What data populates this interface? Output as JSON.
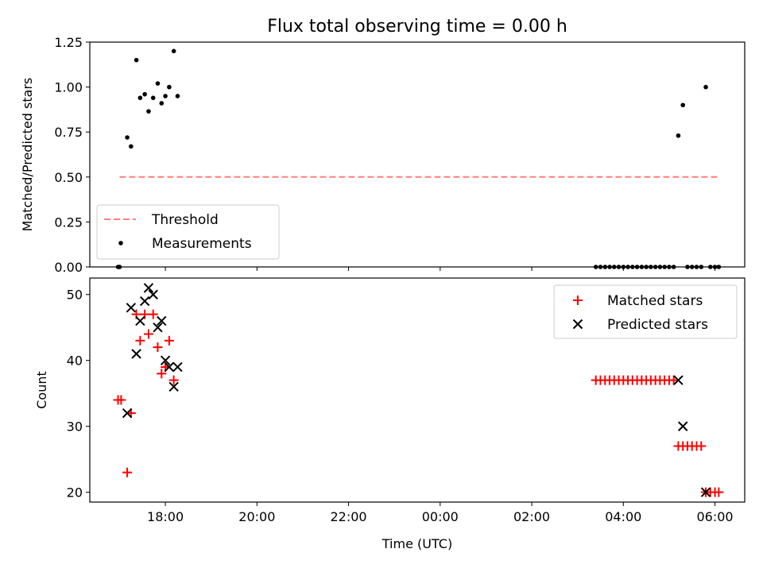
{
  "title": "Flux total observing time = 0.00 h",
  "colors": {
    "threshold": "#ff7f7f",
    "measurement": "#000000",
    "matched": "#ff0000",
    "predicted": "#000000"
  },
  "chart_data": [
    {
      "type": "scatter",
      "title": "Flux total observing time = 0.00 h",
      "xlabel": "",
      "ylabel": "Matched/Predicted stars",
      "ylim": [
        0,
        1.25
      ],
      "yticks": [
        "0.00",
        "0.25",
        "0.50",
        "0.75",
        "1.00",
        "1.25"
      ],
      "xlim_hours": [
        16.35,
        30.65
      ],
      "legend_position": "lower-left",
      "threshold": {
        "name": "Threshold",
        "y": 0.5,
        "x_start": "17:00",
        "x_end": "06:05"
      },
      "series": [
        {
          "name": "Measurements",
          "x": [
            "16:58",
            "17:00",
            "17:10",
            "17:15",
            "17:22",
            "17:27",
            "17:33",
            "17:38",
            "17:44",
            "17:50",
            "17:55",
            "18:00",
            "18:05",
            "18:11",
            "18:16",
            "03:24",
            "03:30",
            "03:36",
            "03:42",
            "03:48",
            "03:54",
            "04:00",
            "04:06",
            "04:12",
            "04:18",
            "04:24",
            "04:30",
            "04:36",
            "04:42",
            "04:48",
            "04:54",
            "05:00",
            "05:06",
            "05:12",
            "05:18",
            "05:24",
            "05:30",
            "05:36",
            "05:42",
            "05:48",
            "05:54",
            "06:00",
            "06:05"
          ],
          "y": [
            0.0,
            0.0,
            0.72,
            0.67,
            1.15,
            0.94,
            0.96,
            0.865,
            0.94,
            1.02,
            0.91,
            0.95,
            1.0,
            1.2,
            0.95,
            0,
            0,
            0,
            0,
            0,
            0,
            0,
            0,
            0,
            0,
            0,
            0,
            0,
            0,
            0,
            0,
            0,
            0,
            0.73,
            0.9,
            0,
            0,
            0,
            0,
            1.0,
            0,
            0,
            0
          ]
        }
      ]
    },
    {
      "type": "scatter",
      "xlabel": "Time (UTC)",
      "ylabel": "Count",
      "ylim": [
        18.5,
        52.5
      ],
      "yticks": [
        "20",
        "30",
        "40",
        "50"
      ],
      "xticks": [
        "18:00",
        "20:00",
        "22:00",
        "00:00",
        "02:00",
        "04:00",
        "06:00"
      ],
      "xlim_hours": [
        16.35,
        30.65
      ],
      "legend_position": "upper-right",
      "series": [
        {
          "name": "Matched stars",
          "x": [
            "16:58",
            "17:02",
            "17:10",
            "17:15",
            "17:22",
            "17:27",
            "17:33",
            "17:38",
            "17:44",
            "17:50",
            "17:55",
            "18:00",
            "18:05",
            "18:11",
            "18:16",
            "03:24",
            "03:30",
            "03:36",
            "03:42",
            "03:48",
            "03:54",
            "04:00",
            "04:06",
            "04:12",
            "04:18",
            "04:24",
            "04:30",
            "04:36",
            "04:42",
            "04:48",
            "04:54",
            "05:00",
            "05:06",
            "05:12",
            "05:18",
            "05:24",
            "05:30",
            "05:36",
            "05:42",
            "05:48",
            "05:54",
            "06:00",
            "06:05"
          ],
          "y": [
            34,
            34,
            23,
            32,
            47,
            43,
            47,
            44,
            47,
            42,
            38,
            39,
            43,
            37,
            null,
            37,
            37,
            37,
            37,
            37,
            37,
            37,
            37,
            37,
            37,
            37,
            37,
            37,
            37,
            37,
            37,
            37,
            37,
            27,
            27,
            27,
            27,
            27,
            27,
            20,
            20,
            20,
            20
          ]
        },
        {
          "name": "Predicted stars",
          "x": [
            "17:10",
            "17:15",
            "17:22",
            "17:27",
            "17:33",
            "17:38",
            "17:44",
            "17:50",
            "17:55",
            "18:00",
            "18:05",
            "18:11",
            "18:16",
            "05:12",
            "05:18",
            "05:48"
          ],
          "y": [
            32,
            48,
            41,
            46,
            49,
            51,
            50,
            45,
            46,
            40,
            39,
            36,
            39,
            37,
            30,
            20
          ]
        }
      ]
    }
  ]
}
